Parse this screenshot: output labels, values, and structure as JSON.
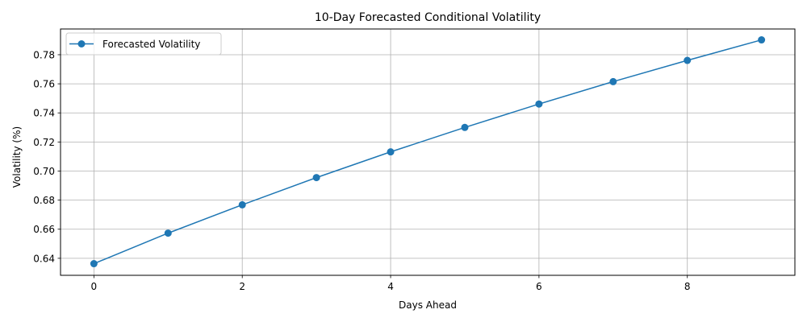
{
  "chart_data": {
    "type": "line",
    "title": "10-Day Forecasted Conditional Volatility",
    "xlabel": "Days Ahead",
    "ylabel": "Volatility (%)",
    "xlim": [
      -0.45,
      9.45
    ],
    "ylim": [
      0.6283,
      0.7977
    ],
    "xticks": [
      0,
      2,
      4,
      6,
      8
    ],
    "xtick_labels": [
      "0",
      "2",
      "4",
      "6",
      "8"
    ],
    "yticks": [
      0.64,
      0.66,
      0.68,
      0.7,
      0.72,
      0.74,
      0.76,
      0.78
    ],
    "ytick_labels": [
      "0.64",
      "0.66",
      "0.68",
      "0.70",
      "0.72",
      "0.74",
      "0.76",
      "0.78"
    ],
    "grid": true,
    "legend_position": "upper-left",
    "series": [
      {
        "name": "Forecasted Volatility",
        "color": "#1f77b4",
        "marker": "circle",
        "x": [
          0,
          1,
          2,
          3,
          4,
          5,
          6,
          7,
          8,
          9
        ],
        "y": [
          0.6363,
          0.6573,
          0.6768,
          0.6955,
          0.7132,
          0.73,
          0.7461,
          0.7615,
          0.7761,
          0.7902
        ]
      }
    ]
  }
}
